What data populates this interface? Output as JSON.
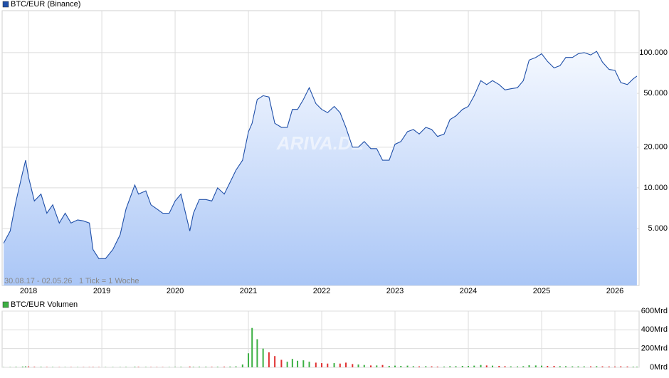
{
  "chart_data": [
    {
      "type": "line",
      "log_scale": true,
      "grid": true,
      "x": [
        2017.66,
        2017.75,
        2017.83,
        2017.92,
        2017.96,
        2018.0,
        2018.08,
        2018.17,
        2018.25,
        2018.33,
        2018.42,
        2018.5,
        2018.58,
        2018.67,
        2018.75,
        2018.83,
        2018.88,
        2018.96,
        2019.05,
        2019.15,
        2019.25,
        2019.33,
        2019.45,
        2019.5,
        2019.6,
        2019.67,
        2019.75,
        2019.83,
        2019.92,
        2020.0,
        2020.08,
        2020.2,
        2020.25,
        2020.33,
        2020.42,
        2020.5,
        2020.58,
        2020.67,
        2020.75,
        2020.83,
        2020.92,
        2021.0,
        2021.05,
        2021.12,
        2021.2,
        2021.28,
        2021.36,
        2021.45,
        2021.53,
        2021.6,
        2021.67,
        2021.75,
        2021.83,
        2021.92,
        2022.0,
        2022.08,
        2022.17,
        2022.25,
        2022.33,
        2022.42,
        2022.5,
        2022.58,
        2022.67,
        2022.75,
        2022.83,
        2022.92,
        2023.0,
        2023.08,
        2023.17,
        2023.25,
        2023.33,
        2023.42,
        2023.5,
        2023.58,
        2023.67,
        2023.75,
        2023.83,
        2023.92,
        2024.0,
        2024.08,
        2024.17,
        2024.25,
        2024.33,
        2024.42,
        2024.5,
        2024.58,
        2024.67,
        2024.75,
        2024.83,
        2024.92,
        2025.0,
        2025.08,
        2025.17,
        2025.25,
        2025.33,
        2025.42,
        2025.5,
        2025.58,
        2025.67,
        2025.75,
        2025.83,
        2025.92,
        2026.0,
        2026.08,
        2026.17,
        2026.25,
        2026.3
      ],
      "series": [
        {
          "name": "BTC/EUR (Binance)",
          "color": "#1f4fa8",
          "values": [
            3900,
            4800,
            8000,
            13000,
            16000,
            12000,
            8000,
            9000,
            6500,
            7500,
            5500,
            6500,
            5500,
            5800,
            5700,
            5500,
            3500,
            3000,
            3000,
            3500,
            4500,
            7000,
            10500,
            9000,
            9500,
            7500,
            7000,
            6500,
            6500,
            8000,
            9000,
            4800,
            6500,
            8200,
            8200,
            8000,
            10000,
            9000,
            11000,
            13500,
            16000,
            26000,
            30000,
            45000,
            48000,
            47000,
            30000,
            28000,
            28000,
            38000,
            38000,
            45000,
            55000,
            42000,
            38000,
            36000,
            40000,
            36000,
            28000,
            20000,
            20000,
            22000,
            19500,
            19500,
            16000,
            16000,
            21000,
            22000,
            26000,
            27000,
            25000,
            28000,
            27000,
            24000,
            25000,
            32000,
            34000,
            38000,
            40000,
            48000,
            62000,
            58000,
            62000,
            58000,
            53000,
            54000,
            55000,
            62000,
            88000,
            92000,
            98000,
            86000,
            77000,
            80000,
            92000,
            92000,
            98000,
            100000,
            96000,
            102000,
            85000,
            75000,
            74000,
            60000,
            58000,
            64000,
            67000
          ]
        }
      ],
      "xlim": [
        2017.64,
        2026.33
      ],
      "xticks": [
        2018,
        2019,
        2020,
        2021,
        2022,
        2023,
        2024,
        2025,
        2026
      ],
      "ylim": [
        1900,
        204000
      ],
      "yticks": [
        {
          "value": 5000,
          "label": "5.000"
        },
        {
          "value": 10000,
          "label": "10.000"
        },
        {
          "value": 20000,
          "label": "20.000"
        },
        {
          "value": 50000,
          "label": "50.000"
        },
        {
          "value": 100000,
          "label": "100.000"
        }
      ],
      "date_range": "30.08.17 - 02.05.26",
      "tick_note": "1 Tick = 1 Woche",
      "watermark": "ARIVA.DE"
    },
    {
      "type": "bar",
      "grid": true,
      "up_color": "#3cb043",
      "down_color": "#e03030",
      "x": [
        2017.66,
        2017.75,
        2017.83,
        2017.92,
        2017.96,
        2018.0,
        2018.08,
        2018.17,
        2018.25,
        2018.33,
        2018.42,
        2018.5,
        2018.58,
        2018.67,
        2018.75,
        2018.83,
        2018.88,
        2018.96,
        2019.05,
        2019.15,
        2019.25,
        2019.33,
        2019.45,
        2019.5,
        2019.6,
        2019.67,
        2019.75,
        2019.83,
        2019.92,
        2020.0,
        2020.08,
        2020.2,
        2020.25,
        2020.33,
        2020.42,
        2020.5,
        2020.58,
        2020.67,
        2020.75,
        2020.83,
        2020.92,
        2021.0,
        2021.05,
        2021.12,
        2021.2,
        2021.28,
        2021.36,
        2021.45,
        2021.53,
        2021.6,
        2021.67,
        2021.75,
        2021.83,
        2021.92,
        2022.0,
        2022.08,
        2022.17,
        2022.25,
        2022.33,
        2022.42,
        2022.5,
        2022.58,
        2022.67,
        2022.75,
        2022.83,
        2022.92,
        2023.0,
        2023.08,
        2023.17,
        2023.25,
        2023.33,
        2023.42,
        2023.5,
        2023.58,
        2023.67,
        2023.75,
        2023.83,
        2023.92,
        2024.0,
        2024.08,
        2024.17,
        2024.25,
        2024.33,
        2024.42,
        2024.5,
        2024.58,
        2024.67,
        2024.75,
        2024.83,
        2024.92,
        2025.0,
        2025.08,
        2025.17,
        2025.25,
        2025.33,
        2025.42,
        2025.5,
        2025.58,
        2025.67,
        2025.75,
        2025.83,
        2025.92,
        2026.0,
        2026.08,
        2026.17,
        2026.25,
        2026.3
      ],
      "series": [
        {
          "name": "BTC/EUR Volumen",
          "color": "#3cb043",
          "values": [
            2,
            3,
            5,
            8,
            10,
            9,
            6,
            5,
            4,
            4,
            3,
            3,
            3,
            3,
            3,
            3,
            4,
            3,
            3,
            3,
            3,
            4,
            6,
            5,
            4,
            3,
            3,
            3,
            3,
            4,
            5,
            8,
            5,
            6,
            6,
            5,
            6,
            7,
            8,
            10,
            30,
            150,
            420,
            300,
            200,
            160,
            120,
            80,
            60,
            90,
            70,
            75,
            60,
            50,
            45,
            40,
            45,
            40,
            50,
            35,
            30,
            25,
            20,
            20,
            25,
            15,
            18,
            15,
            18,
            12,
            10,
            12,
            10,
            8,
            8,
            12,
            12,
            15,
            15,
            18,
            25,
            20,
            18,
            15,
            12,
            10,
            10,
            12,
            22,
            20,
            18,
            15,
            15,
            12,
            12,
            10,
            10,
            10,
            10,
            12,
            10,
            9,
            8,
            10,
            9,
            7,
            6
          ]
        }
      ],
      "xlim": [
        2017.64,
        2026.33
      ],
      "xticks": [
        2018,
        2019,
        2020,
        2021,
        2022,
        2023,
        2024,
        2025,
        2026
      ],
      "ylim": [
        0,
        600
      ],
      "yticks": [
        {
          "value": 0,
          "label": "0Mrd"
        },
        {
          "value": 200,
          "label": "200Mrd"
        },
        {
          "value": 400,
          "label": "400Mrd"
        },
        {
          "value": 600,
          "label": "600Mrd"
        }
      ]
    }
  ]
}
